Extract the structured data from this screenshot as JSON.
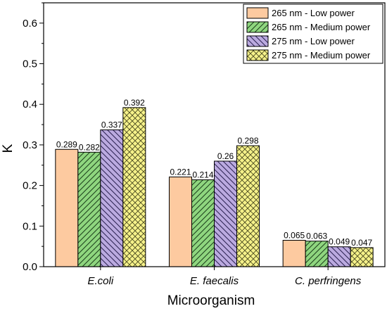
{
  "chart_data": {
    "type": "bar",
    "title": "",
    "xlabel": "Microorganism",
    "ylabel": "K",
    "ylim": [
      0,
      0.65
    ],
    "yticks": [
      "0.0",
      "0.1",
      "0.2",
      "0.3",
      "0.4",
      "0.5",
      "0.6"
    ],
    "grid": false,
    "legend_position": "top-right",
    "categories": [
      "E.coli",
      "E. faecalis",
      "C. perfringens"
    ],
    "series": [
      {
        "name": "265 nm - Low power",
        "values": [
          0.289,
          0.221,
          0.065
        ],
        "labels": [
          "0.289",
          "0.221",
          "0.065"
        ],
        "color": "#fdcaa0",
        "pattern": "none"
      },
      {
        "name": "265 nm - Medium power",
        "values": [
          0.282,
          0.214,
          0.063
        ],
        "labels": [
          "0.282",
          "0.214",
          "0.063"
        ],
        "color": "#8fd67f",
        "pattern": "diag-right"
      },
      {
        "name": "275 nm - Low power",
        "values": [
          0.337,
          0.26,
          0.049
        ],
        "labels": [
          "0.337",
          "0.26",
          "0.049"
        ],
        "color": "#bbaae0",
        "pattern": "diag-left"
      },
      {
        "name": "275 nm - Medium power",
        "values": [
          0.392,
          0.298,
          0.047
        ],
        "labels": [
          "0.392",
          "0.298",
          "0.047"
        ],
        "color": "#f6f28a",
        "pattern": "crosshatch"
      }
    ]
  }
}
